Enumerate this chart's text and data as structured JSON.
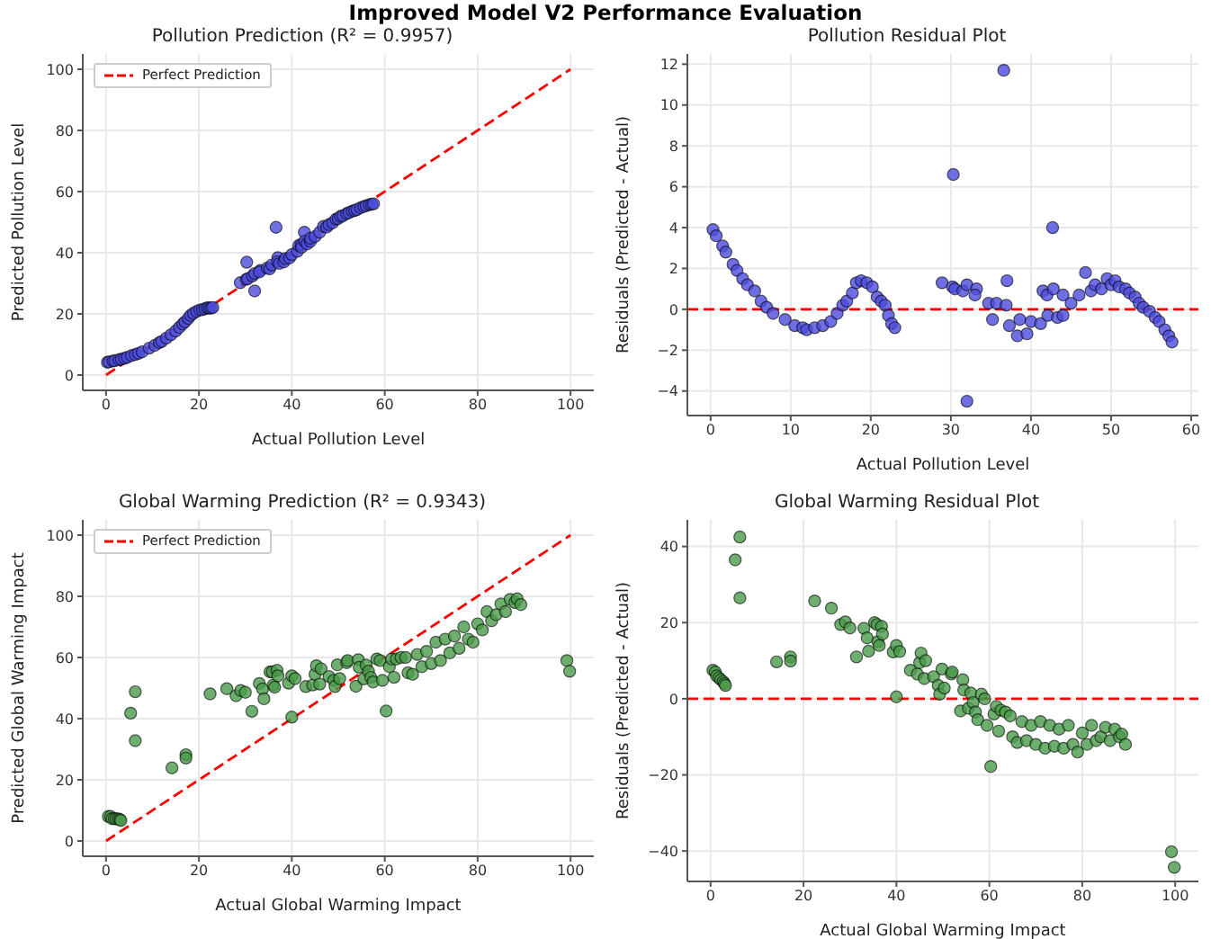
{
  "chart_data": [
    {
      "type": "scatter",
      "title": "Pollution Prediction (R² = 0.9957)",
      "annotations": [
        "Improved Model V2 Performance Evaluation"
      ],
      "xlabel": "Actual Pollution Level",
      "ylabel": "Predicted Pollution Level",
      "xlim": [
        -5,
        105
      ],
      "ylim": [
        -5,
        105
      ],
      "xticks": [
        0,
        20,
        40,
        60,
        80,
        100
      ],
      "yticks": [
        0,
        20,
        40,
        60,
        80,
        100
      ],
      "grid": true,
      "marker": "circle",
      "legend": "top left",
      "series": [
        {
          "type": "scatter",
          "color": "#4b4bdc",
          "x": [
            0.3,
            0.7,
            1.5,
            1.9,
            2.8,
            3.3,
            4.0,
            4.6,
            5.5,
            6.3,
            7.0,
            7.8,
            9.3,
            10.5,
            11.5,
            12.0,
            13.0,
            14.0,
            15.0,
            15.8,
            16.5,
            17.0,
            17.7,
            18.2,
            18.8,
            19.5,
            20.2,
            20.8,
            21.3,
            21.8,
            22.2,
            22.6,
            23.0,
            28.9,
            30.2,
            30.5,
            30.3,
            31.5,
            32.0,
            32.0,
            33.2,
            33.0,
            34.7,
            35.2,
            35.7,
            36.6,
            37.0,
            36.9,
            37.3,
            38.3,
            38.6,
            39.5,
            40.0,
            41.2,
            41.5,
            42.0,
            42.1,
            42.7,
            42.8,
            43.3,
            44.0,
            44.0,
            45.0,
            46.0,
            46.8,
            47.5,
            48.0,
            48.8,
            49.5,
            50.0,
            50.5,
            51.0,
            51.8,
            52.3,
            53.0,
            53.5,
            54.0,
            54.8,
            55.5,
            56.0,
            56.7,
            57.2,
            57.6
          ],
          "values": [
            4.2,
            4.3,
            4.6,
            4.7,
            5.0,
            5.2,
            5.5,
            5.8,
            6.4,
            6.7,
            7.1,
            7.6,
            8.8,
            9.7,
            10.6,
            11.0,
            12.1,
            13.2,
            14.4,
            15.6,
            16.7,
            17.4,
            18.5,
            19.5,
            20.2,
            20.8,
            21.3,
            21.4,
            21.7,
            22.0,
            21.9,
            21.9,
            22.1,
            30.2,
            31.3,
            31.5,
            36.9,
            32.4,
            33.2,
            27.5,
            34.2,
            33.7,
            35.0,
            34.7,
            36.0,
            48.3,
            38.4,
            37.1,
            36.5,
            37.0,
            38.1,
            38.3,
            39.4,
            40.5,
            42.4,
            42.7,
            41.8,
            46.7,
            43.8,
            42.9,
            43.7,
            44.7,
            45.3,
            46.7,
            48.6,
            48.4,
            49.2,
            49.8,
            51.0,
            51.2,
            51.9,
            52.1,
            52.8,
            53.1,
            53.6,
            53.8,
            54.1,
            54.7,
            55.1,
            55.4,
            55.7,
            55.9,
            56.0
          ]
        },
        {
          "type": "line",
          "name": "Perfect Prediction",
          "color": "#ff0000",
          "line_style": "dashed",
          "marker": "none",
          "x": [
            0,
            100
          ],
          "values": [
            0,
            100
          ]
        }
      ]
    },
    {
      "type": "scatter",
      "title": "Pollution Residual Plot",
      "xlabel": "Actual Pollution Level",
      "ylabel": "Residuals (Predicted - Actual)",
      "xlim": [
        -2.9,
        60.9
      ],
      "ylim": [
        -5.2,
        12.5
      ],
      "xticks": [
        0,
        10,
        20,
        30,
        40,
        50,
        60
      ],
      "yticks": [
        {
          "value": -4,
          "label": "−4"
        },
        {
          "value": -2,
          "label": "−2"
        },
        0,
        2,
        4,
        6,
        8,
        10,
        12
      ],
      "grid": true,
      "marker": "circle",
      "ref_lines": [
        {
          "axis": "y",
          "value": 0,
          "color": "#ff0000",
          "line_style": "dashed"
        }
      ],
      "series": [
        {
          "type": "scatter",
          "color": "#4b4bdc",
          "x": [
            0.3,
            0.7,
            1.5,
            1.9,
            2.8,
            3.3,
            4.0,
            4.6,
            5.5,
            6.3,
            7.0,
            7.8,
            9.3,
            10.5,
            11.5,
            12.0,
            13.0,
            14.0,
            15.0,
            15.8,
            16.5,
            17.0,
            17.7,
            18.2,
            18.8,
            19.5,
            20.2,
            20.8,
            21.3,
            21.8,
            22.2,
            22.6,
            23.0,
            28.9,
            30.2,
            30.5,
            30.3,
            31.5,
            32.0,
            32.0,
            33.2,
            33.0,
            34.7,
            35.2,
            35.7,
            36.6,
            37.0,
            36.9,
            37.3,
            38.3,
            38.6,
            39.5,
            40.0,
            41.2,
            41.5,
            42.0,
            42.1,
            42.7,
            42.8,
            43.3,
            44.0,
            44.0,
            45.0,
            46.0,
            46.8,
            47.5,
            48.0,
            48.8,
            49.5,
            50.0,
            50.5,
            51.0,
            51.8,
            52.3,
            53.0,
            53.5,
            54.0,
            54.8,
            55.5,
            56.0,
            56.7,
            57.2,
            57.6
          ],
          "values": [
            3.9,
            3.6,
            3.1,
            2.8,
            2.2,
            1.9,
            1.5,
            1.2,
            0.9,
            0.4,
            0.1,
            -0.2,
            -0.5,
            -0.8,
            -0.9,
            -1.0,
            -0.9,
            -0.8,
            -0.6,
            -0.2,
            0.2,
            0.4,
            0.8,
            1.3,
            1.4,
            1.3,
            1.1,
            0.6,
            0.4,
            0.2,
            -0.3,
            -0.7,
            -0.9,
            1.3,
            1.1,
            1.0,
            6.6,
            0.9,
            1.2,
            -4.5,
            1.0,
            0.7,
            0.3,
            -0.5,
            0.3,
            11.7,
            1.4,
            0.2,
            -0.8,
            -1.3,
            -0.5,
            -1.2,
            -0.6,
            -0.7,
            0.9,
            0.7,
            -0.3,
            4.0,
            1.0,
            -0.4,
            -0.3,
            0.7,
            0.3,
            0.7,
            1.8,
            0.9,
            1.2,
            1.0,
            1.5,
            1.2,
            1.4,
            1.1,
            1.0,
            0.8,
            0.6,
            0.3,
            0.1,
            -0.1,
            -0.4,
            -0.6,
            -1.0,
            -1.3,
            -1.6
          ]
        }
      ]
    },
    {
      "type": "scatter",
      "title": "Global Warming Prediction (R² = 0.9343)",
      "xlabel": "Actual Global Warming Impact",
      "ylabel": "Predicted Global Warming Impact",
      "xlim": [
        -5,
        105
      ],
      "ylim": [
        -5,
        105
      ],
      "xticks": [
        0,
        20,
        40,
        60,
        80,
        100
      ],
      "yticks": [
        0,
        20,
        40,
        60,
        80,
        100
      ],
      "grid": true,
      "marker": "circle",
      "legend": "top left",
      "series": [
        {
          "type": "scatter",
          "color": "#4a9a4a",
          "x": [
            0.5,
            1.0,
            1.3,
            1.8,
            2.2,
            2.7,
            3.0,
            3.2,
            5.3,
            6.3,
            6.3,
            14.2,
            17.2,
            17.2,
            22.4,
            26,
            28,
            29,
            30,
            31.4,
            33,
            33.7,
            34,
            35.3,
            35.8,
            36,
            36.3,
            36.8,
            37,
            39.3,
            40,
            40,
            40.7,
            43,
            44.5,
            45,
            45.3,
            46,
            46.3,
            48,
            49,
            49.3,
            49.8,
            50.3,
            51.8,
            52,
            53.8,
            54.3,
            54.5,
            55.5,
            56,
            56.5,
            57,
            57.5,
            58.3,
            59,
            59.5,
            60.3,
            61,
            61.5,
            62,
            62.5,
            63.5,
            64.5,
            65,
            66,
            67,
            68,
            69,
            70,
            71,
            72,
            73,
            74,
            75,
            76,
            77,
            78,
            79,
            80,
            81,
            82,
            83,
            84,
            85,
            86,
            87,
            88,
            88.5,
            89.3,
            99.2,
            99.8
          ],
          "values": [
            8.0,
            8.0,
            7.3,
            7.3,
            7.2,
            7.2,
            7.0,
            6.7,
            41.8,
            48.8,
            32.8,
            23.9,
            28.2,
            27.1,
            48.1,
            49.8,
            47.5,
            49.2,
            48.6,
            42.4,
            51.5,
            49.7,
            46.5,
            55.3,
            55.3,
            51.0,
            50.3,
            55.8,
            54.0,
            51.6,
            40.5,
            54.0,
            53.1,
            50.5,
            51.0,
            54.5,
            57.3,
            51.3,
            56.3,
            53.8,
            52.5,
            50.5,
            57.6,
            53.1,
            58.3,
            59.0,
            50.6,
            59.3,
            56.8,
            53.0,
            57.5,
            55.5,
            53.5,
            52.0,
            59.5,
            59.0,
            52.5,
            42.5,
            57.0,
            59.5,
            53.5,
            59.5,
            60.0,
            60.0,
            55.0,
            54.5,
            61.0,
            57.0,
            62.0,
            58.0,
            65.0,
            59.0,
            66.0,
            61.5,
            67.0,
            63.0,
            70.0,
            66.0,
            65.0,
            71.0,
            69.0,
            75.0,
            72.0,
            74.0,
            77.5,
            75.0,
            79.0,
            78.0,
            79.2,
            77.3,
            59.0,
            55.5
          ]
        },
        {
          "type": "line",
          "name": "Perfect Prediction",
          "color": "#ff0000",
          "line_style": "dashed",
          "marker": "none",
          "x": [
            0,
            100
          ],
          "values": [
            0,
            100
          ]
        }
      ]
    },
    {
      "type": "scatter",
      "title": "Global Warming Residual Plot",
      "xlabel": "Actual Global Warming Impact",
      "ylabel": "Residuals (Predicted - Actual)",
      "xlim": [
        -5,
        105
      ],
      "ylim": [
        -48,
        47
      ],
      "xticks": [
        0,
        20,
        40,
        60,
        80,
        100
      ],
      "yticks": [
        {
          "value": -40,
          "label": "−40"
        },
        {
          "value": -20,
          "label": "−20"
        },
        0,
        20,
        40
      ],
      "grid": true,
      "marker": "circle",
      "ref_lines": [
        {
          "axis": "y",
          "value": 0,
          "color": "#ff0000",
          "line_style": "dashed"
        }
      ],
      "series": [
        {
          "type": "scatter",
          "color": "#4a9a4a",
          "x": [
            0.5,
            1.0,
            1.3,
            1.8,
            2.2,
            2.7,
            3.0,
            3.2,
            5.3,
            6.3,
            6.3,
            14.2,
            17.2,
            17.2,
            22.4,
            26,
            28,
            29,
            30,
            31.4,
            33,
            33.7,
            34,
            35.3,
            35.8,
            36,
            36.3,
            36.8,
            37,
            39.3,
            40,
            40,
            40.7,
            43,
            44.5,
            45,
            45.3,
            46,
            46.3,
            48,
            49,
            49.3,
            49.8,
            50.3,
            51.8,
            52,
            53.8,
            54.3,
            54.5,
            55.5,
            56,
            56.5,
            57,
            57.5,
            58.3,
            59,
            59.5,
            60.3,
            61,
            61.5,
            62,
            62.5,
            63.5,
            64.5,
            65,
            66,
            67,
            68,
            69,
            70,
            71,
            72,
            73,
            74,
            75,
            76,
            77,
            78,
            79,
            80,
            81,
            82,
            83,
            84,
            85,
            86,
            87,
            88,
            88.5,
            89.3,
            99.2,
            99.8
          ],
          "values": [
            7.5,
            7,
            6,
            5.5,
            5,
            4.5,
            4,
            3.5,
            36.5,
            42.5,
            26.5,
            9.7,
            11,
            9.9,
            25.7,
            23.8,
            19.5,
            20.2,
            18.6,
            11,
            18.5,
            16,
            12.5,
            20,
            19.5,
            15,
            14,
            19,
            17,
            12.3,
            0.5,
            14,
            12.4,
            7.5,
            6.5,
            9.5,
            12,
            5.3,
            10,
            5.8,
            3.5,
            1.2,
            7.8,
            2.8,
            6.5,
            7,
            -3.2,
            5,
            2.3,
            -2.5,
            1.5,
            -1,
            -3.5,
            -5.5,
            1.2,
            0,
            -7,
            -17.8,
            -4,
            -2,
            -8.5,
            -3,
            -3.5,
            -4.5,
            -10,
            -11.5,
            -6,
            -11,
            -7,
            -12,
            -6,
            -13,
            -7,
            -12.5,
            -8,
            -13,
            -7,
            -12,
            -14,
            -9,
            -12,
            -7,
            -11,
            -10,
            -7.5,
            -11,
            -8,
            -10,
            -9.3,
            -12,
            -40.2,
            -44.3
          ]
        }
      ]
    }
  ]
}
